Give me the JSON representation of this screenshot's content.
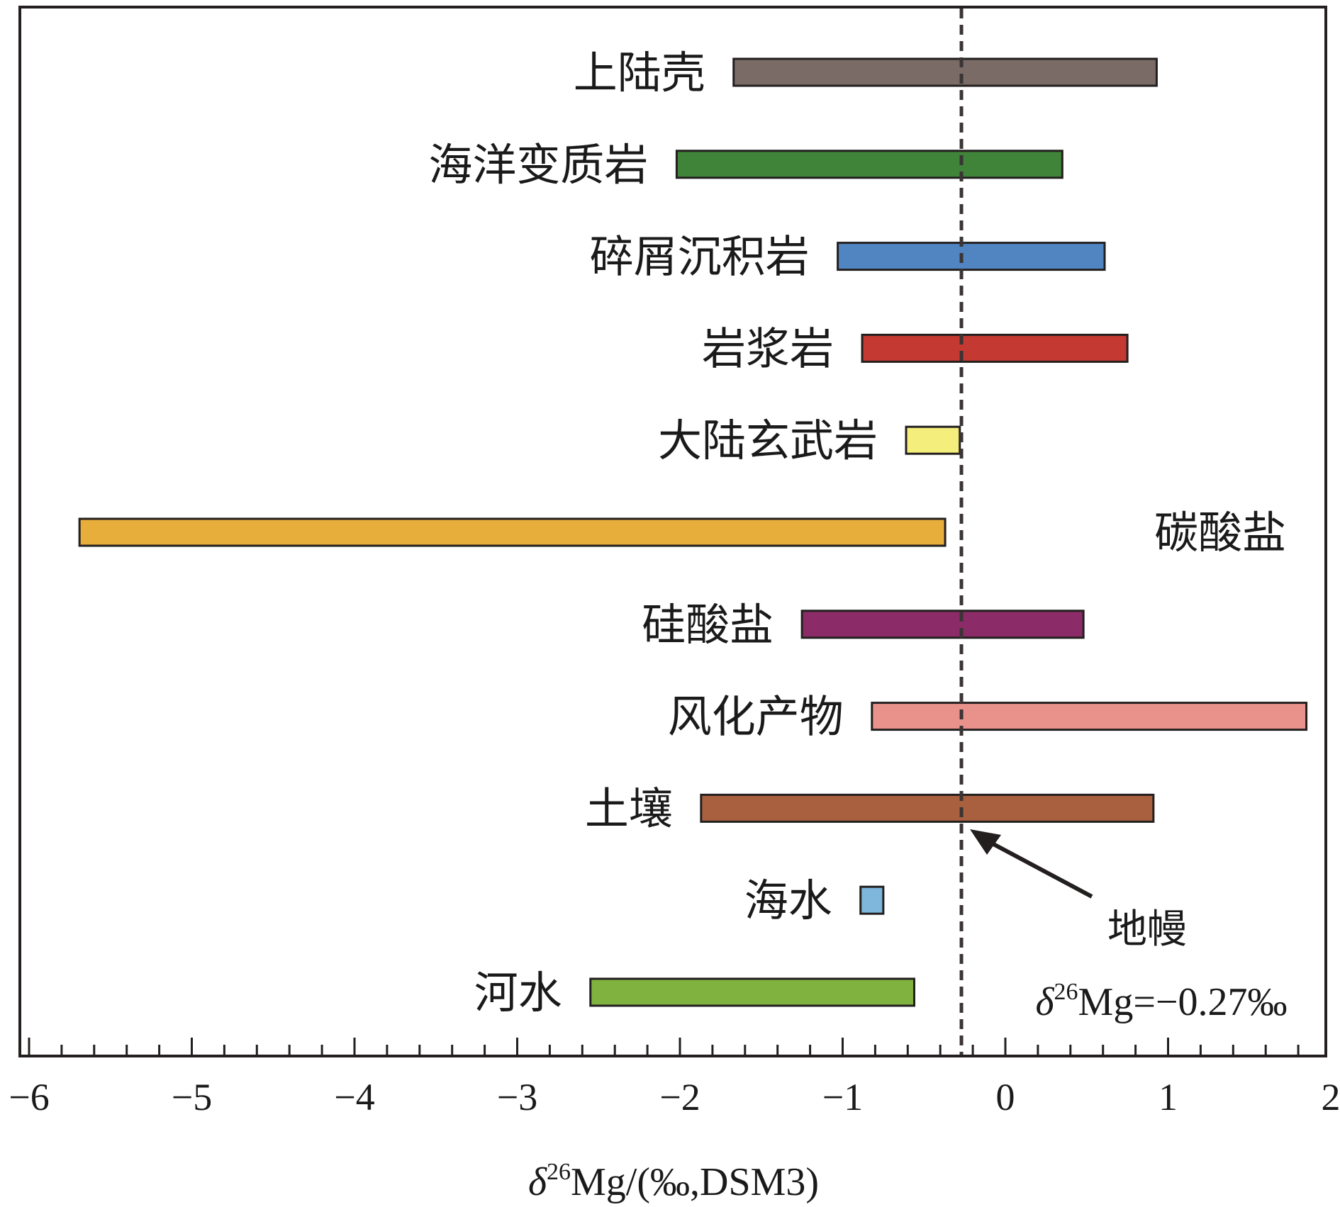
{
  "chart_data": {
    "type": "bar",
    "orientation": "horizontal",
    "xlabel_symbol": "δ",
    "xlabel_sup": "26",
    "xlabel_rest": "Mg/(‰,DSM3)",
    "xlim": [
      -6.1,
      2.05
    ],
    "xticks": [
      {
        "value": -6,
        "label": "−6"
      },
      {
        "value": -5,
        "label": "−5"
      },
      {
        "value": -4,
        "label": "−4"
      },
      {
        "value": -3,
        "label": "−3"
      },
      {
        "value": -2,
        "label": "−2"
      },
      {
        "value": -1,
        "label": "−1"
      },
      {
        "value": 0,
        "label": "0"
      },
      {
        "value": 1,
        "label": "1"
      },
      {
        "value": 2,
        "label": "2"
      }
    ],
    "minor_tick_step": 0.2,
    "grid": false,
    "categories": [
      {
        "name": "上陆壳",
        "min": -1.67,
        "max": 0.93,
        "color": "#7a6b66",
        "label_side": "left"
      },
      {
        "name": "海洋变质岩",
        "min": -2.02,
        "max": 0.35,
        "color": "#3f8438",
        "label_side": "left"
      },
      {
        "name": "碎屑沉积岩",
        "min": -1.03,
        "max": 0.61,
        "color": "#5185c1",
        "label_side": "left"
      },
      {
        "name": "岩浆岩",
        "min": -0.88,
        "max": 0.75,
        "color": "#c43a32",
        "label_side": "left"
      },
      {
        "name": "大陆玄武岩",
        "min": -0.61,
        "max": -0.28,
        "color": "#f4ee7d",
        "label_side": "left"
      },
      {
        "name": "碳酸盐",
        "min": -5.69,
        "max": -0.37,
        "color": "#e8ae3c",
        "label_side": "right"
      },
      {
        "name": "硅酸盐",
        "min": -1.25,
        "max": 0.48,
        "color": "#8b2c68",
        "label_side": "left"
      },
      {
        "name": "风化产物",
        "min": -0.82,
        "max": 1.85,
        "color": "#e8928b",
        "label_side": "left"
      },
      {
        "name": "土壤",
        "min": -1.87,
        "max": 0.91,
        "color": "#a9603f",
        "label_side": "left"
      },
      {
        "name": "海水",
        "min": -0.89,
        "max": -0.75,
        "color": "#7eb6dc",
        "label_side": "left"
      },
      {
        "name": "河水",
        "min": -2.55,
        "max": -0.56,
        "color": "#80b23f",
        "label_side": "left"
      }
    ],
    "reference_line": {
      "value": -0.27,
      "style": "dashed",
      "label": "地幔",
      "value_symbol": "δ",
      "value_sup": "26",
      "value_rest": "Mg=−0.27‰"
    }
  }
}
